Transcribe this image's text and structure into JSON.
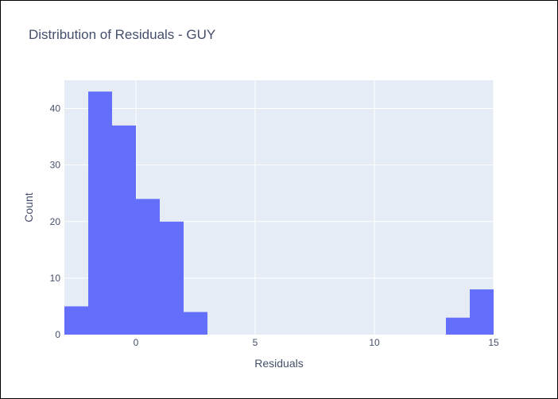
{
  "chart_data": {
    "type": "bar",
    "title": "Distribution of Residuals - GUY",
    "xlabel": "Residuals",
    "ylabel": "Count",
    "xlim": [
      -3,
      15
    ],
    "ylim": [
      0,
      45
    ],
    "x_ticks": [
      0,
      5,
      10,
      15
    ],
    "y_ticks": [
      0,
      10,
      20,
      30,
      40
    ],
    "grid": true,
    "bar_color": "#636efa",
    "plot_bg": "#e5ecf6",
    "bins": [
      {
        "x0": -3,
        "x1": -2,
        "count": 5
      },
      {
        "x0": -2,
        "x1": -1,
        "count": 43
      },
      {
        "x0": -1,
        "x1": 0,
        "count": 37
      },
      {
        "x0": 0,
        "x1": 1,
        "count": 24
      },
      {
        "x0": 1,
        "x1": 2,
        "count": 20
      },
      {
        "x0": 2,
        "x1": 3,
        "count": 4
      },
      {
        "x0": 13,
        "x1": 14,
        "count": 3
      },
      {
        "x0": 14,
        "x1": 15,
        "count": 8
      }
    ]
  }
}
